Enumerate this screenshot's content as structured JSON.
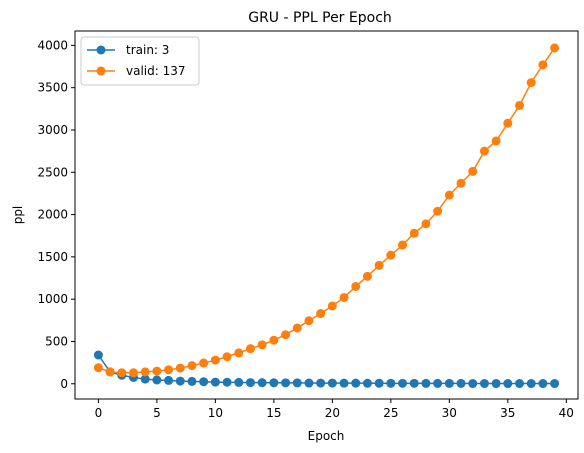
{
  "chart_data": {
    "type": "line",
    "title": "GRU - PPL Per Epoch",
    "xlabel": "Epoch",
    "ylabel": "ppl",
    "xlim": [
      -2,
      41
    ],
    "ylim": [
      -180,
      4170
    ],
    "xticks": [
      0,
      5,
      10,
      15,
      20,
      25,
      30,
      35,
      40
    ],
    "yticks": [
      0,
      500,
      1000,
      1500,
      2000,
      2500,
      3000,
      3500,
      4000
    ],
    "grid": false,
    "legend_position": "top-left",
    "x": [
      0,
      1,
      2,
      3,
      4,
      5,
      6,
      7,
      8,
      9,
      10,
      11,
      12,
      13,
      14,
      15,
      16,
      17,
      18,
      19,
      20,
      21,
      22,
      23,
      24,
      25,
      26,
      27,
      28,
      29,
      30,
      31,
      32,
      33,
      34,
      35,
      36,
      37,
      38,
      39
    ],
    "series": [
      {
        "name": "train: 3",
        "color": "#1f77b4",
        "values": [
          340,
          140,
          100,
          75,
          55,
          45,
          40,
          32,
          28,
          24,
          20,
          18,
          16,
          14,
          13,
          12,
          11,
          10,
          9,
          8,
          8,
          7,
          7,
          6,
          6,
          5,
          5,
          5,
          4,
          4,
          4,
          4,
          3,
          3,
          3,
          3,
          3,
          3,
          3,
          3
        ]
      },
      {
        "name": "valid: 137",
        "color": "#ff7f0e",
        "values": [
          190,
          140,
          130,
          130,
          140,
          150,
          165,
          185,
          215,
          245,
          280,
          320,
          365,
          415,
          460,
          515,
          580,
          660,
          745,
          830,
          920,
          1020,
          1150,
          1270,
          1400,
          1520,
          1640,
          1780,
          1890,
          2040,
          2230,
          2370,
          2510,
          2750,
          2870,
          3080,
          3290,
          3560,
          3770,
          3970
        ]
      }
    ]
  }
}
